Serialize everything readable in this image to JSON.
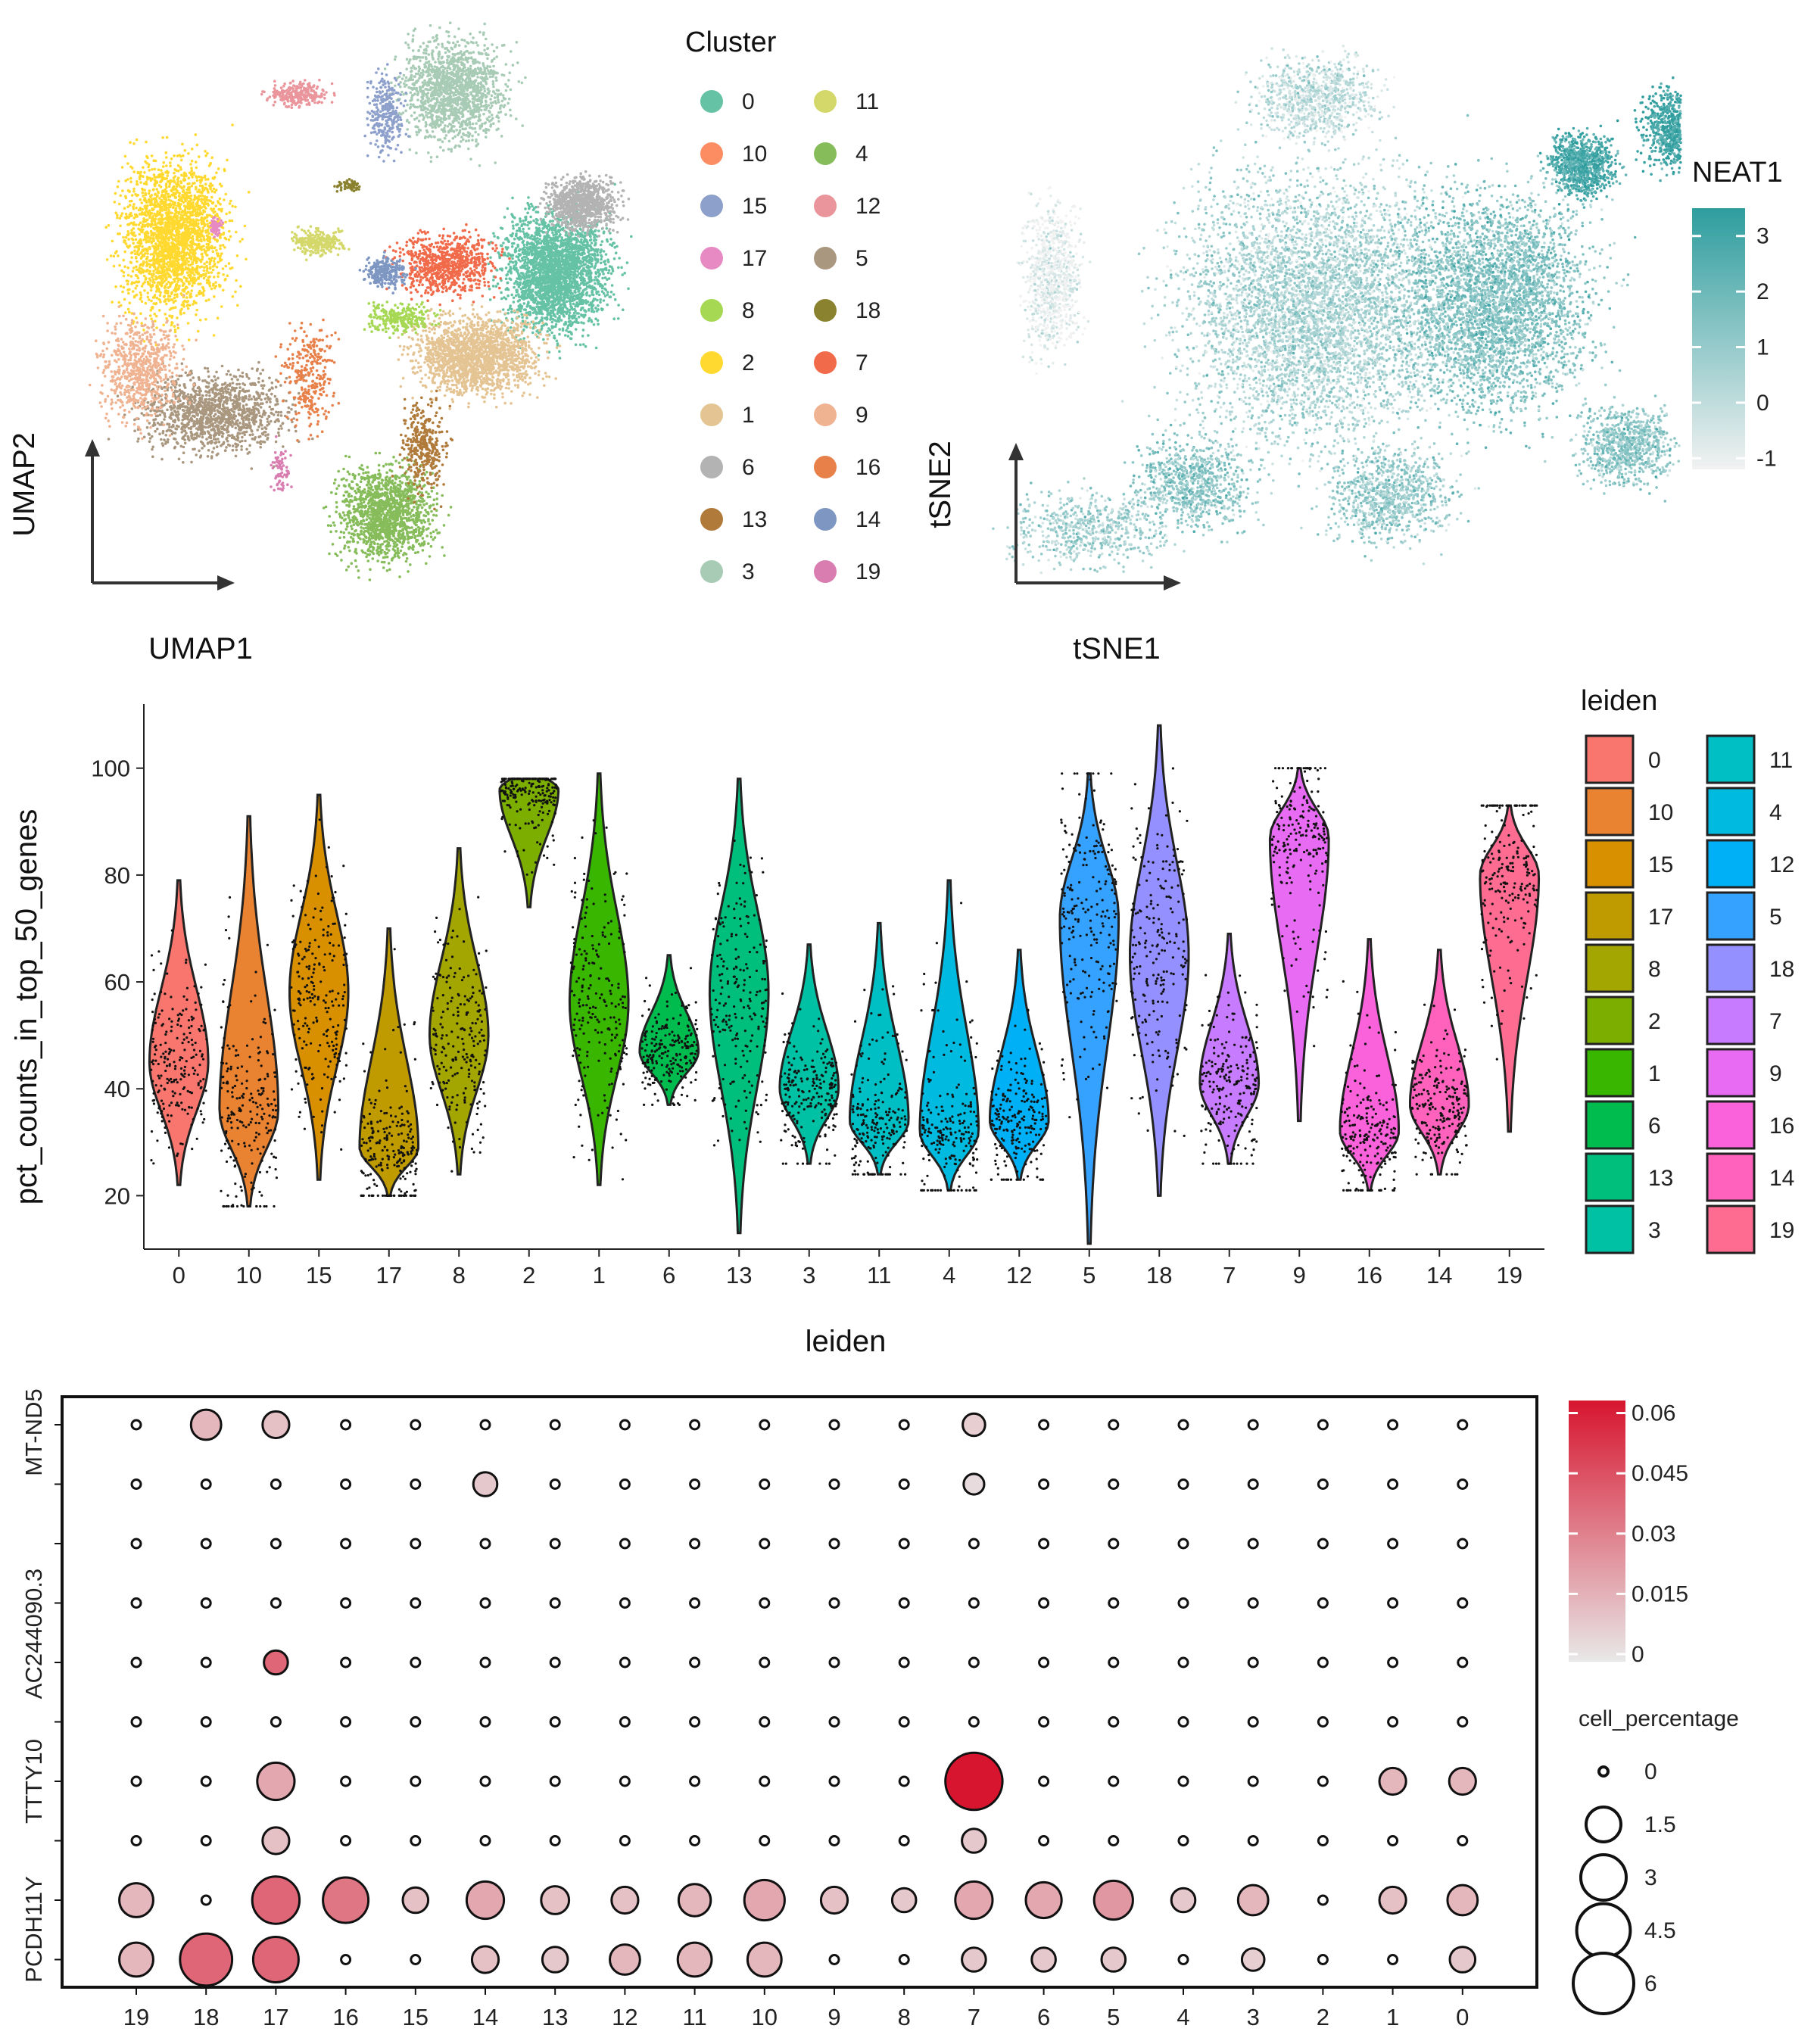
{
  "chart_data": [
    {
      "type": "scatter",
      "xlabel": "UMAP1",
      "ylabel": "UMAP2",
      "legend_title": "Cluster",
      "legend_placement": "right",
      "legend": [
        {
          "label": "0",
          "color": "#66C2A5"
        },
        {
          "label": "10",
          "color": "#FC8D62"
        },
        {
          "label": "15",
          "color": "#8DA0CB"
        },
        {
          "label": "17",
          "color": "#E78AC3"
        },
        {
          "label": "8",
          "color": "#A6D854"
        },
        {
          "label": "2",
          "color": "#FFD92F"
        },
        {
          "label": "1",
          "color": "#E5C494"
        },
        {
          "label": "6",
          "color": "#B3B3B3"
        },
        {
          "label": "13",
          "color": "#B07A3A"
        },
        {
          "label": "3",
          "color": "#A8CBB5"
        },
        {
          "label": "11",
          "color": "#D4D86A"
        },
        {
          "label": "4",
          "color": "#86BC5A"
        },
        {
          "label": "12",
          "color": "#EA959C"
        },
        {
          "label": "5",
          "color": "#AA977F"
        },
        {
          "label": "18",
          "color": "#8B8230"
        },
        {
          "label": "7",
          "color": "#F16B4B"
        },
        {
          "label": "9",
          "color": "#F0B392"
        },
        {
          "label": "16",
          "color": "#E8804A"
        },
        {
          "label": "14",
          "color": "#7E97C2"
        },
        {
          "label": "19",
          "color": "#D97CB0"
        }
      ]
    },
    {
      "type": "scatter",
      "xlabel": "tSNE1",
      "ylabel": "tSNE2",
      "colorbar_title": "NEAT1",
      "colorbar_ticks": [
        "3",
        "2",
        "1",
        "0",
        "-1"
      ],
      "colorbar_range": [
        -1.2,
        3.5
      ],
      "colorbar_colors": [
        "#F2F2F2",
        "#2E9D9E"
      ]
    },
    {
      "type": "violin",
      "ylabel": "pct_counts_in_top_50_genes",
      "xlabel": "leiden",
      "ylim": [
        10,
        112
      ],
      "yticks": [
        "20",
        "40",
        "60",
        "80",
        "100"
      ],
      "legend_title": "leiden",
      "legend_placement": "right",
      "categories": [
        "0",
        "10",
        "15",
        "17",
        "8",
        "2",
        "1",
        "6",
        "13",
        "3",
        "11",
        "4",
        "12",
        "5",
        "18",
        "7",
        "9",
        "16",
        "14",
        "19"
      ],
      "colors": [
        "#F8766D",
        "#EA8331",
        "#D89000",
        "#C09B00",
        "#A3A500",
        "#7CAE00",
        "#39B600",
        "#00BB4E",
        "#00BF7D",
        "#00C1A3",
        "#00BFC4",
        "#00BAE0",
        "#00B0F6",
        "#35A2FF",
        "#9590FF",
        "#C77CFF",
        "#E76BF3",
        "#FA62DB",
        "#FF62BC",
        "#FF6C91"
      ],
      "ranges": [
        [
          22,
          79
        ],
        [
          18,
          91
        ],
        [
          23,
          95
        ],
        [
          20,
          70
        ],
        [
          24,
          85
        ],
        [
          74,
          98
        ],
        [
          22,
          99
        ],
        [
          37,
          65
        ],
        [
          13,
          98
        ],
        [
          26,
          67
        ],
        [
          24,
          71
        ],
        [
          21,
          79
        ],
        [
          23,
          66
        ],
        [
          11,
          99
        ],
        [
          20,
          108
        ],
        [
          26,
          69
        ],
        [
          34,
          100
        ],
        [
          21,
          68
        ],
        [
          24,
          66
        ],
        [
          32,
          93
        ]
      ],
      "modes": [
        45,
        36,
        58,
        29,
        50,
        96,
        56,
        47,
        58,
        40,
        34,
        32,
        34,
        72,
        65,
        41,
        87,
        32,
        37,
        80
      ],
      "legend": [
        "0",
        "10",
        "15",
        "17",
        "8",
        "2",
        "1",
        "6",
        "13",
        "3",
        "11",
        "4",
        "12",
        "5",
        "18",
        "7",
        "9",
        "16",
        "14",
        "19"
      ]
    },
    {
      "type": "dot",
      "x_categories": [
        "19",
        "18",
        "17",
        "16",
        "15",
        "14",
        "13",
        "12",
        "11",
        "10",
        "9",
        "8",
        "7",
        "6",
        "5",
        "4",
        "3",
        "2",
        "1",
        "0"
      ],
      "y_labels": [
        "MT-ND5",
        "AC244090.3",
        "TTTY10",
        "PCDH11Y"
      ],
      "n_rows": 10,
      "colorbar_ticks": [
        "0.06",
        "0.045",
        "0.03",
        "0.015",
        "0"
      ],
      "colorbar_range": [
        0,
        0.065
      ],
      "colorbar_colors": [
        "#E8E8E8",
        "#D7152F"
      ],
      "size_legend_title": "cell_percentage",
      "size_legend": [
        "0",
        "1.5",
        "3",
        "4.5",
        "6"
      ],
      "size_legend_values": [
        0,
        1.5,
        3,
        4.5,
        6
      ],
      "points": [
        {
          "row": 0,
          "col": 1,
          "size": 1.0,
          "value": 0.015
        },
        {
          "row": 0,
          "col": 2,
          "size": 0.7,
          "value": 0.012
        },
        {
          "row": 0,
          "col": 12,
          "size": 0.4,
          "value": 0.008
        },
        {
          "row": 1,
          "col": 5,
          "size": 0.5,
          "value": 0.01
        },
        {
          "row": 1,
          "col": 12,
          "size": 0.3,
          "value": 0.004
        },
        {
          "row": 4,
          "col": 2,
          "size": 0.5,
          "value": 0.04
        },
        {
          "row": 6,
          "col": 2,
          "size": 1.8,
          "value": 0.02
        },
        {
          "row": 6,
          "col": 12,
          "size": 5.2,
          "value": 0.065
        },
        {
          "row": 6,
          "col": 18,
          "size": 0.7,
          "value": 0.015
        },
        {
          "row": 6,
          "col": 19,
          "size": 0.7,
          "value": 0.015
        },
        {
          "row": 7,
          "col": 2,
          "size": 0.7,
          "value": 0.012
        },
        {
          "row": 7,
          "col": 12,
          "size": 0.5,
          "value": 0.01
        },
        {
          "row": 8,
          "col": 0,
          "size": 1.4,
          "value": 0.015
        },
        {
          "row": 8,
          "col": 2,
          "size": 3.3,
          "value": 0.04
        },
        {
          "row": 8,
          "col": 3,
          "size": 3.0,
          "value": 0.035
        },
        {
          "row": 8,
          "col": 4,
          "size": 0.6,
          "value": 0.012
        },
        {
          "row": 8,
          "col": 5,
          "size": 1.8,
          "value": 0.02
        },
        {
          "row": 8,
          "col": 6,
          "size": 0.8,
          "value": 0.012
        },
        {
          "row": 8,
          "col": 7,
          "size": 0.7,
          "value": 0.012
        },
        {
          "row": 8,
          "col": 8,
          "size": 1.2,
          "value": 0.015
        },
        {
          "row": 8,
          "col": 9,
          "size": 2.2,
          "value": 0.02
        },
        {
          "row": 8,
          "col": 10,
          "size": 0.7,
          "value": 0.012
        },
        {
          "row": 8,
          "col": 11,
          "size": 0.5,
          "value": 0.01
        },
        {
          "row": 8,
          "col": 12,
          "size": 1.8,
          "value": 0.02
        },
        {
          "row": 8,
          "col": 13,
          "size": 1.6,
          "value": 0.02
        },
        {
          "row": 8,
          "col": 14,
          "size": 2.0,
          "value": 0.025
        },
        {
          "row": 8,
          "col": 15,
          "size": 0.5,
          "value": 0.01
        },
        {
          "row": 8,
          "col": 16,
          "size": 1.0,
          "value": 0.015
        },
        {
          "row": 8,
          "col": 18,
          "size": 0.7,
          "value": 0.012
        },
        {
          "row": 8,
          "col": 19,
          "size": 1.0,
          "value": 0.015
        },
        {
          "row": 9,
          "col": 0,
          "size": 1.4,
          "value": 0.015
        },
        {
          "row": 9,
          "col": 1,
          "size": 4.2,
          "value": 0.04
        },
        {
          "row": 9,
          "col": 2,
          "size": 3.0,
          "value": 0.04
        },
        {
          "row": 9,
          "col": 5,
          "size": 0.7,
          "value": 0.012
        },
        {
          "row": 9,
          "col": 6,
          "size": 0.6,
          "value": 0.01
        },
        {
          "row": 9,
          "col": 7,
          "size": 1.0,
          "value": 0.015
        },
        {
          "row": 9,
          "col": 8,
          "size": 1.4,
          "value": 0.015
        },
        {
          "row": 9,
          "col": 9,
          "size": 1.4,
          "value": 0.015
        },
        {
          "row": 9,
          "col": 12,
          "size": 0.5,
          "value": 0.01
        },
        {
          "row": 9,
          "col": 13,
          "size": 0.5,
          "value": 0.01
        },
        {
          "row": 9,
          "col": 14,
          "size": 0.5,
          "value": 0.01
        },
        {
          "row": 9,
          "col": 16,
          "size": 0.4,
          "value": 0.008
        },
        {
          "row": 9,
          "col": 19,
          "size": 0.6,
          "value": 0.01
        }
      ]
    }
  ]
}
